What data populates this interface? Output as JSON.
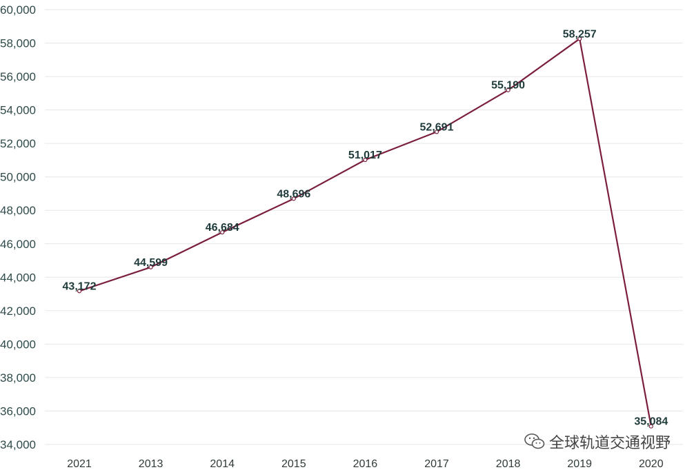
{
  "chart_data": {
    "type": "line",
    "categories": [
      "2021",
      "2013",
      "2014",
      "2015",
      "2016",
      "2017",
      "2018",
      "2019",
      "2020"
    ],
    "series": [
      {
        "values": [
          43172,
          44599,
          46684,
          48696,
          51017,
          52691,
          55190,
          58257,
          35084
        ],
        "color": "#7a1e3c"
      }
    ],
    "data_labels": [
      "43,172",
      "44,599",
      "46,684",
      "48,696",
      "51,017",
      "52,691",
      "55,190",
      "58,257",
      "35,084"
    ],
    "yticks": [
      34000,
      36000,
      38000,
      40000,
      42000,
      44000,
      46000,
      48000,
      50000,
      52000,
      54000,
      56000,
      58000,
      60000
    ],
    "ytick_labels": [
      "34,000",
      "36,000",
      "38,000",
      "40,000",
      "42,000",
      "44,000",
      "46,000",
      "48,000",
      "50,000",
      "52,000",
      "54,000",
      "56,000",
      "58,000",
      "60,000"
    ],
    "ylim": [
      34000,
      60000
    ],
    "title": "",
    "xlabel": "",
    "ylabel": "",
    "grid": true,
    "legend": "none"
  },
  "watermark": {
    "icon": "wechat-icon",
    "text": "全球轨道交通视野"
  }
}
